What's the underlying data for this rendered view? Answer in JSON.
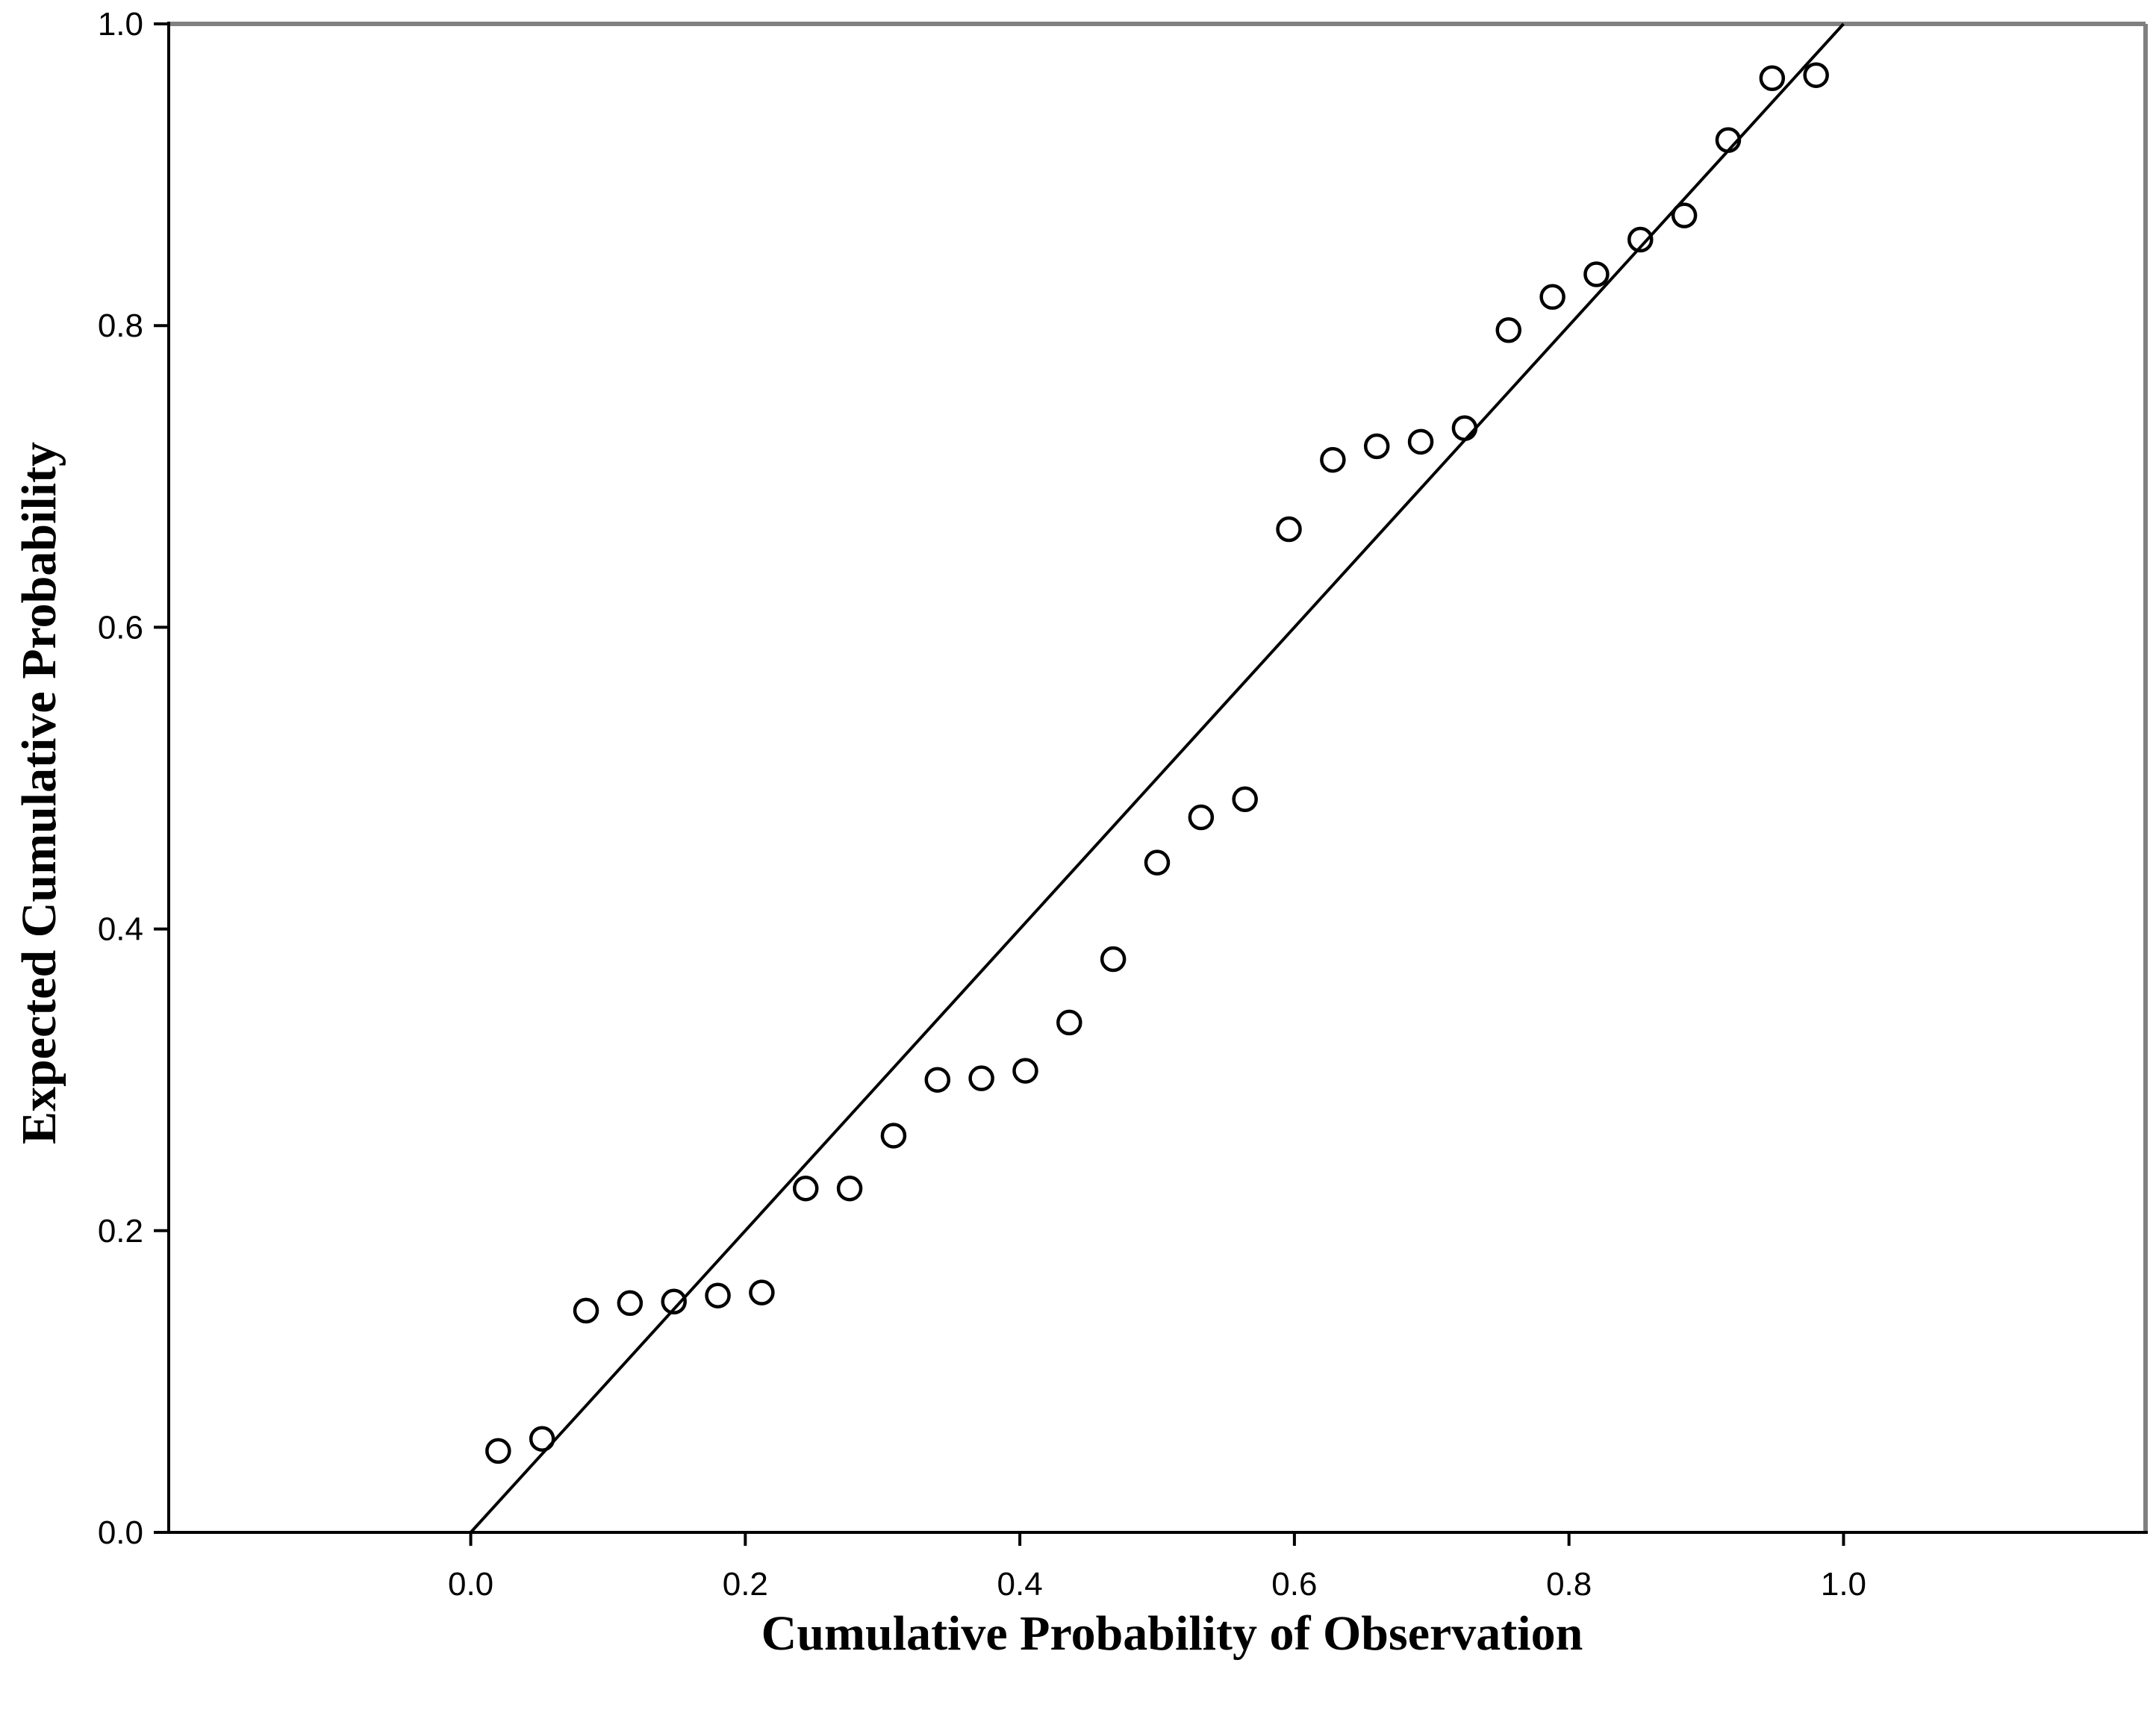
{
  "chart_data": {
    "type": "scatter",
    "title": "",
    "xlabel": "Cumulative Probability of Observation",
    "ylabel": "Expected Cumulative Probability",
    "xlim": [
      -0.22,
      1.22
    ],
    "ylim": [
      0.0,
      1.0
    ],
    "x_ticks": [
      {
        "value": 0.0,
        "label": "0.0"
      },
      {
        "value": 0.2,
        "label": "0.2"
      },
      {
        "value": 0.4,
        "label": "0.4"
      },
      {
        "value": 0.6,
        "label": "0.6"
      },
      {
        "value": 0.8,
        "label": "0.8"
      },
      {
        "value": 1.0,
        "label": "1.0"
      }
    ],
    "y_ticks": [
      {
        "value": 0.0,
        "label": "0.0"
      },
      {
        "value": 0.2,
        "label": "0.2"
      },
      {
        "value": 0.4,
        "label": "0.4"
      },
      {
        "value": 0.6,
        "label": "0.6"
      },
      {
        "value": 0.8,
        "label": "0.8"
      },
      {
        "value": 1.0,
        "label": "1.0"
      }
    ],
    "grid": false,
    "legend": "none",
    "reference_line": {
      "from": [
        0.0,
        0.0
      ],
      "to": [
        1.0,
        1.0
      ]
    },
    "series": [
      {
        "marker": "open-circle",
        "color": "#000000",
        "points": [
          {
            "x": 0.02,
            "y": 0.054
          },
          {
            "x": 0.052,
            "y": 0.062
          },
          {
            "x": 0.084,
            "y": 0.147
          },
          {
            "x": 0.116,
            "y": 0.152
          },
          {
            "x": 0.148,
            "y": 0.153
          },
          {
            "x": 0.18,
            "y": 0.157
          },
          {
            "x": 0.212,
            "y": 0.159
          },
          {
            "x": 0.244,
            "y": 0.228
          },
          {
            "x": 0.276,
            "y": 0.228
          },
          {
            "x": 0.308,
            "y": 0.263
          },
          {
            "x": 0.34,
            "y": 0.3
          },
          {
            "x": 0.372,
            "y": 0.301
          },
          {
            "x": 0.404,
            "y": 0.306
          },
          {
            "x": 0.436,
            "y": 0.338
          },
          {
            "x": 0.468,
            "y": 0.38
          },
          {
            "x": 0.5,
            "y": 0.444
          },
          {
            "x": 0.532,
            "y": 0.474
          },
          {
            "x": 0.564,
            "y": 0.486
          },
          {
            "x": 0.596,
            "y": 0.665
          },
          {
            "x": 0.628,
            "y": 0.711
          },
          {
            "x": 0.66,
            "y": 0.72
          },
          {
            "x": 0.692,
            "y": 0.723
          },
          {
            "x": 0.724,
            "y": 0.732
          },
          {
            "x": 0.756,
            "y": 0.797
          },
          {
            "x": 0.788,
            "y": 0.819
          },
          {
            "x": 0.82,
            "y": 0.834
          },
          {
            "x": 0.852,
            "y": 0.857
          },
          {
            "x": 0.884,
            "y": 0.873
          },
          {
            "x": 0.916,
            "y": 0.923
          },
          {
            "x": 0.948,
            "y": 0.964
          },
          {
            "x": 0.98,
            "y": 0.966
          }
        ]
      }
    ]
  }
}
